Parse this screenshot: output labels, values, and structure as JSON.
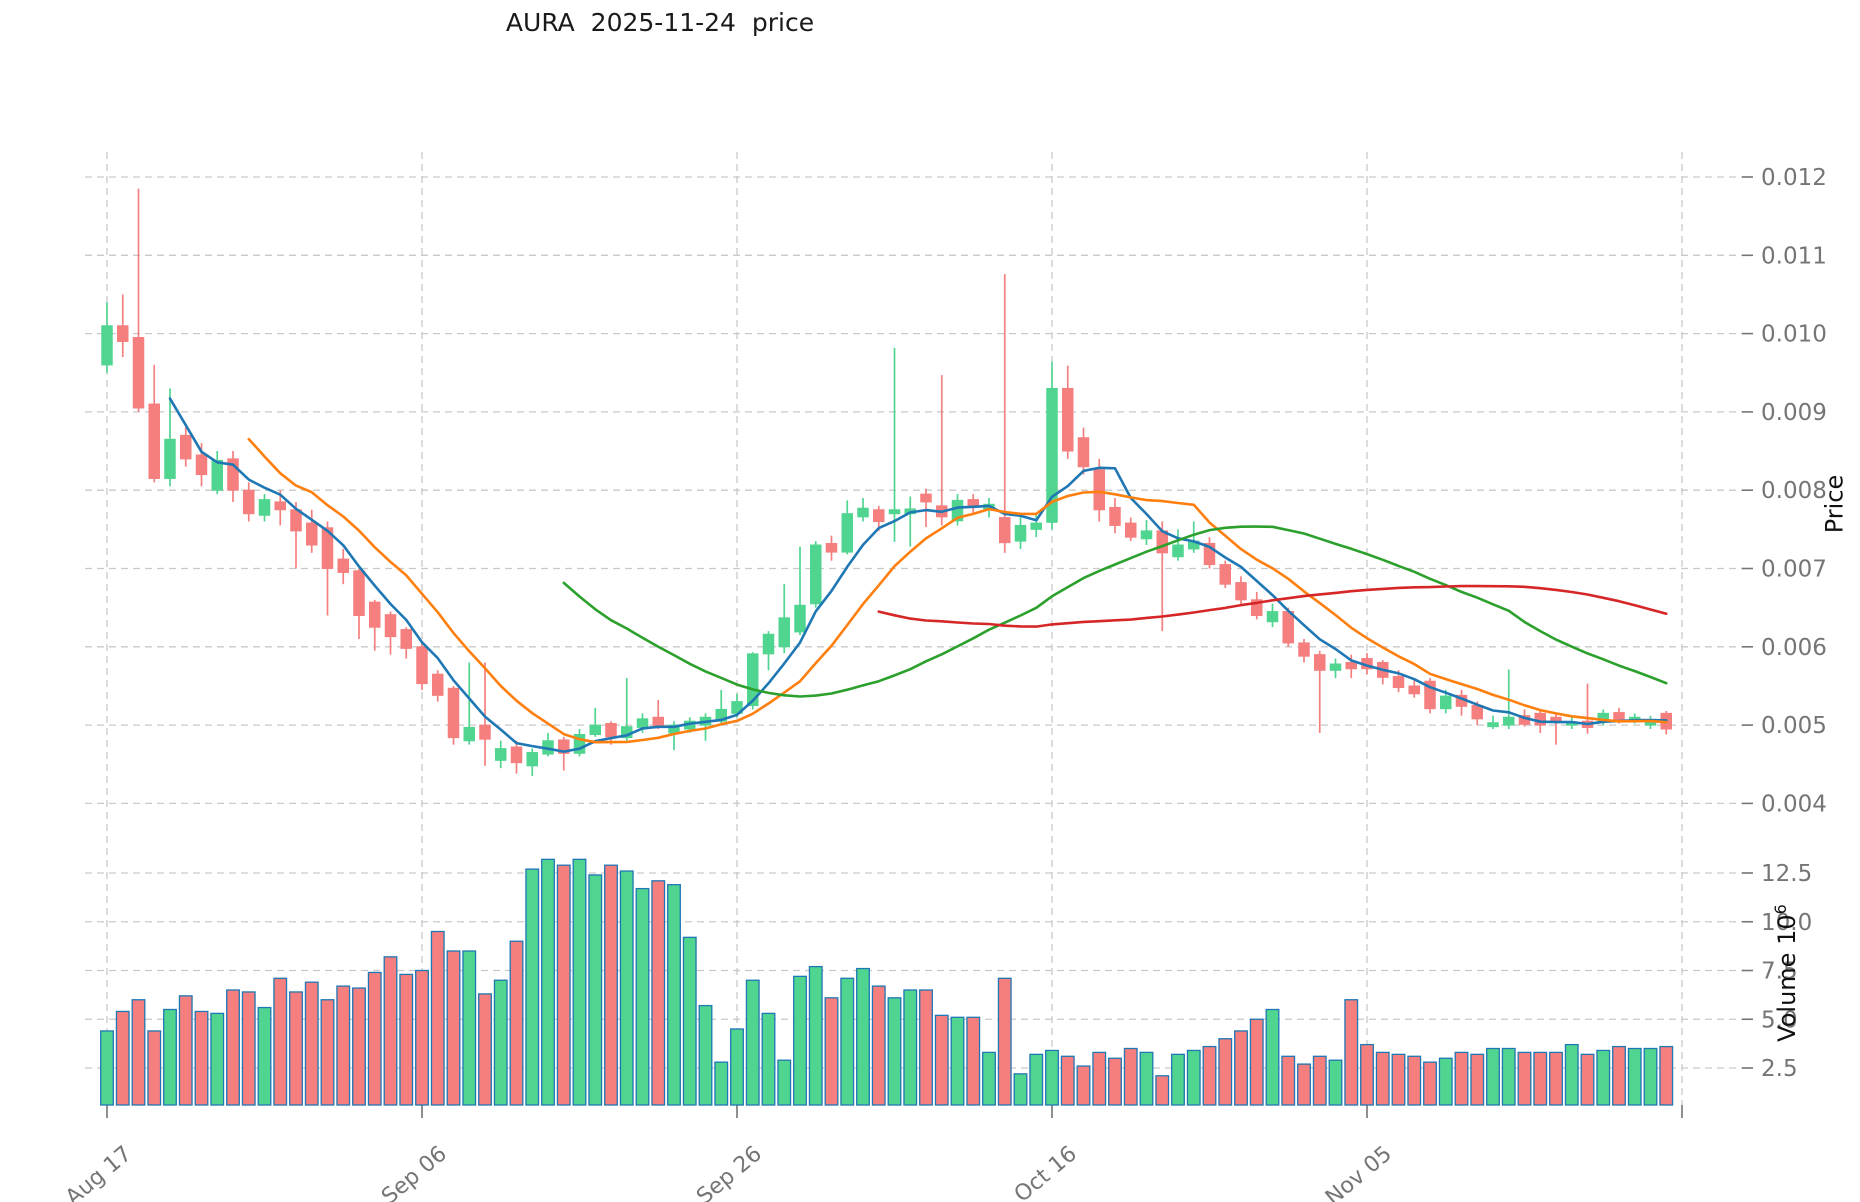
{
  "title": "AURA  2025-11-24  price",
  "axes": {
    "price_label": "Price",
    "volume_label": "Volume 10",
    "volume_label_exp": "6",
    "price_ticks": [
      0.004,
      0.005,
      0.006,
      0.007,
      0.008,
      0.009,
      0.01,
      0.011,
      0.012
    ],
    "volume_ticks": [
      2.5,
      5.0,
      7.5,
      10.0,
      12.5
    ],
    "x_ticks": [
      {
        "index": 0,
        "label": "Aug 17"
      },
      {
        "index": 20,
        "label": "Sep 06"
      },
      {
        "index": 40,
        "label": "Sep 26"
      },
      {
        "index": 60,
        "label": "Oct 16"
      },
      {
        "index": 80,
        "label": "Nov 05"
      },
      {
        "index": 100,
        "label": ""
      }
    ]
  },
  "colors": {
    "up": "#50d591",
    "down": "#f57e7e",
    "volume_edge": "#1f77b4",
    "grid": "#c9c9c9",
    "tick_text": "#757575",
    "title_text": "#1a1a1a",
    "background": "#ffffff"
  },
  "chart_data": {
    "type": "candlestick+volume",
    "title": "AURA  2025-11-24  price",
    "ylabel": "Price",
    "ylabel_lower": "Volume 10^6",
    "price_ylim": [
      0.004,
      0.012
    ],
    "volume_unit": 1000000,
    "legend_position": "none",
    "grid": "dashed",
    "dates": [
      "2025-08-17",
      "2025-08-18",
      "2025-08-19",
      "2025-08-20",
      "2025-08-21",
      "2025-08-22",
      "2025-08-23",
      "2025-08-24",
      "2025-08-25",
      "2025-08-26",
      "2025-08-27",
      "2025-08-28",
      "2025-08-29",
      "2025-08-30",
      "2025-08-31",
      "2025-09-01",
      "2025-09-02",
      "2025-09-03",
      "2025-09-04",
      "2025-09-05",
      "2025-09-06",
      "2025-09-07",
      "2025-09-08",
      "2025-09-09",
      "2025-09-10",
      "2025-09-11",
      "2025-09-12",
      "2025-09-13",
      "2025-09-14",
      "2025-09-15",
      "2025-09-16",
      "2025-09-17",
      "2025-09-18",
      "2025-09-19",
      "2025-09-20",
      "2025-09-21",
      "2025-09-22",
      "2025-09-23",
      "2025-09-24",
      "2025-09-25",
      "2025-09-26",
      "2025-09-27",
      "2025-09-28",
      "2025-09-29",
      "2025-09-30",
      "2025-10-01",
      "2025-10-02",
      "2025-10-03",
      "2025-10-04",
      "2025-10-05",
      "2025-10-06",
      "2025-10-07",
      "2025-10-08",
      "2025-10-09",
      "2025-10-10",
      "2025-10-11",
      "2025-10-12",
      "2025-10-13",
      "2025-10-14",
      "2025-10-15",
      "2025-10-16",
      "2025-10-17",
      "2025-10-18",
      "2025-10-19",
      "2025-10-20",
      "2025-10-21",
      "2025-10-22",
      "2025-10-23",
      "2025-10-24",
      "2025-10-25",
      "2025-10-26",
      "2025-10-27",
      "2025-10-28",
      "2025-10-29",
      "2025-10-30",
      "2025-10-31",
      "2025-11-01",
      "2025-11-02",
      "2025-11-03",
      "2025-11-04",
      "2025-11-05",
      "2025-11-06",
      "2025-11-07",
      "2025-11-08",
      "2025-11-09",
      "2025-11-10",
      "2025-11-11",
      "2025-11-12",
      "2025-11-13",
      "2025-11-14",
      "2025-11-15",
      "2025-11-16",
      "2025-11-17",
      "2025-11-18",
      "2025-11-19",
      "2025-11-20",
      "2025-11-21",
      "2025-11-22",
      "2025-11-23",
      "2025-11-24"
    ],
    "open": [
      0.0096,
      0.0101,
      0.00995,
      0.0091,
      0.00815,
      0.0087,
      0.00845,
      0.008,
      0.0084,
      0.008,
      0.00768,
      0.00785,
      0.00775,
      0.00758,
      0.00752,
      0.00712,
      0.00697,
      0.00657,
      0.00641,
      0.00622,
      0.006,
      0.00565,
      0.00547,
      0.0048,
      0.005,
      0.00455,
      0.00472,
      0.00448,
      0.00463,
      0.00481,
      0.00464,
      0.00488,
      0.00502,
      0.00484,
      0.00497,
      0.0051,
      0.0049,
      0.00495,
      0.005,
      0.00505,
      0.00515,
      0.00525,
      0.00591,
      0.006,
      0.00619,
      0.00655,
      0.00732,
      0.00721,
      0.00766,
      0.00775,
      0.0077,
      0.0077,
      0.00795,
      0.0078,
      0.00761,
      0.00788,
      0.00775,
      0.00765,
      0.00735,
      0.0075,
      0.00759,
      0.0093,
      0.00867,
      0.00826,
      0.00778,
      0.00758,
      0.00738,
      0.00748,
      0.00715,
      0.00725,
      0.00732,
      0.00705,
      0.00682,
      0.0066,
      0.00632,
      0.00645,
      0.00605,
      0.0059,
      0.0057,
      0.0058,
      0.00585,
      0.0058,
      0.00562,
      0.0055,
      0.00556,
      0.00521,
      0.00538,
      0.00525,
      0.00498,
      0.005,
      0.00512,
      0.00515,
      0.0051,
      0.005,
      0.00505,
      0.00505,
      0.00516,
      0.00505,
      0.005,
      0.00515
    ],
    "high": [
      0.0104,
      0.0105,
      0.01185,
      0.0096,
      0.0093,
      0.0088,
      0.0086,
      0.0085,
      0.0085,
      0.0081,
      0.00795,
      0.008,
      0.00785,
      0.00775,
      0.0076,
      0.00725,
      0.007,
      0.0066,
      0.00645,
      0.00625,
      0.00605,
      0.0057,
      0.0055,
      0.0058,
      0.0058,
      0.0048,
      0.0048,
      0.0047,
      0.0049,
      0.00485,
      0.00495,
      0.00522,
      0.00505,
      0.0056,
      0.00515,
      0.00532,
      0.00505,
      0.0051,
      0.00515,
      0.00545,
      0.0054,
      0.00593,
      0.0062,
      0.0068,
      0.00728,
      0.00735,
      0.00742,
      0.00787,
      0.0079,
      0.0078,
      0.00982,
      0.00792,
      0.00802,
      0.00947,
      0.00795,
      0.00795,
      0.0079,
      0.01076,
      0.0077,
      0.0077,
      0.00964,
      0.00959,
      0.0088,
      0.0084,
      0.0079,
      0.00765,
      0.00762,
      0.0076,
      0.0075,
      0.0076,
      0.0074,
      0.0071,
      0.0069,
      0.0067,
      0.00655,
      0.0065,
      0.0061,
      0.00595,
      0.00585,
      0.0059,
      0.00592,
      0.00583,
      0.0057,
      0.00558,
      0.0056,
      0.00545,
      0.00545,
      0.0053,
      0.00512,
      0.00571,
      0.0052,
      0.00518,
      0.00515,
      0.00512,
      0.00553,
      0.0052,
      0.00522,
      0.00515,
      0.00512,
      0.00518
    ],
    "low": [
      0.0095,
      0.0097,
      0.009,
      0.0081,
      0.00805,
      0.0083,
      0.00805,
      0.00795,
      0.00785,
      0.0076,
      0.0076,
      0.00755,
      0.007,
      0.0072,
      0.0064,
      0.0068,
      0.0061,
      0.00595,
      0.0059,
      0.00585,
      0.00545,
      0.0053,
      0.00475,
      0.00475,
      0.00448,
      0.00445,
      0.00438,
      0.00435,
      0.0046,
      0.00442,
      0.0046,
      0.00485,
      0.00475,
      0.0048,
      0.0049,
      0.00495,
      0.00468,
      0.0049,
      0.0048,
      0.005,
      0.0051,
      0.0052,
      0.0057,
      0.00592,
      0.00615,
      0.0065,
      0.0071,
      0.00718,
      0.0076,
      0.00748,
      0.00734,
      0.00728,
      0.00753,
      0.00755,
      0.00755,
      0.0077,
      0.00765,
      0.0072,
      0.00725,
      0.0074,
      0.0075,
      0.0084,
      0.0082,
      0.0076,
      0.00745,
      0.00735,
      0.0073,
      0.0062,
      0.0071,
      0.0072,
      0.007,
      0.00675,
      0.00655,
      0.00635,
      0.00625,
      0.006,
      0.0058,
      0.0049,
      0.0056,
      0.0056,
      0.00565,
      0.00552,
      0.00542,
      0.00535,
      0.00515,
      0.00515,
      0.00512,
      0.005,
      0.00495,
      0.00495,
      0.00498,
      0.0049,
      0.00475,
      0.00495,
      0.00489,
      0.005,
      0.00502,
      0.00502,
      0.00495,
      0.00488
    ],
    "close": [
      0.0101,
      0.0099,
      0.00905,
      0.00815,
      0.00865,
      0.0084,
      0.0082,
      0.00838,
      0.008,
      0.0077,
      0.00788,
      0.00775,
      0.00748,
      0.0073,
      0.007,
      0.00695,
      0.0064,
      0.00625,
      0.00613,
      0.00598,
      0.00553,
      0.00538,
      0.00484,
      0.00497,
      0.00482,
      0.0047,
      0.00452,
      0.00465,
      0.0048,
      0.00464,
      0.00488,
      0.005,
      0.00485,
      0.00498,
      0.00508,
      0.00498,
      0.005,
      0.00505,
      0.0051,
      0.0052,
      0.0053,
      0.00591,
      0.00616,
      0.00637,
      0.00653,
      0.0073,
      0.00721,
      0.0077,
      0.00777,
      0.0076,
      0.00775,
      0.00776,
      0.00785,
      0.00766,
      0.00787,
      0.0078,
      0.00782,
      0.00733,
      0.00755,
      0.00758,
      0.0093,
      0.0085,
      0.0083,
      0.00775,
      0.00755,
      0.0074,
      0.00748,
      0.0072,
      0.0073,
      0.00735,
      0.00705,
      0.0068,
      0.0066,
      0.0064,
      0.00645,
      0.00605,
      0.00588,
      0.0057,
      0.00578,
      0.00572,
      0.00572,
      0.00561,
      0.00548,
      0.0054,
      0.00521,
      0.00537,
      0.00524,
      0.00508,
      0.00503,
      0.0051,
      0.00501,
      0.005,
      0.00505,
      0.00504,
      0.00497,
      0.00515,
      0.00505,
      0.0051,
      0.00505,
      0.00495
    ],
    "volume": [
      4.4,
      5.4,
      6.0,
      4.4,
      5.5,
      6.2,
      5.4,
      5.3,
      6.5,
      6.4,
      5.6,
      7.1,
      6.4,
      6.9,
      6.0,
      6.7,
      6.6,
      7.4,
      8.2,
      7.3,
      7.5,
      9.5,
      8.5,
      8.5,
      6.3,
      7.0,
      9.0,
      12.7,
      13.2,
      12.9,
      13.2,
      12.4,
      12.9,
      12.6,
      11.7,
      12.1,
      11.9,
      9.2,
      5.7,
      2.8,
      4.5,
      7.0,
      5.3,
      2.9,
      7.2,
      7.7,
      6.1,
      7.1,
      7.6,
      6.7,
      6.1,
      6.5,
      6.5,
      5.2,
      5.1,
      5.1,
      3.3,
      7.1,
      2.2,
      3.2,
      3.4,
      3.1,
      2.6,
      3.3,
      3.0,
      3.5,
      3.3,
      2.1,
      3.2,
      3.4,
      3.6,
      4.0,
      4.4,
      5.0,
      5.5,
      3.1,
      2.7,
      3.1,
      2.9,
      6.0,
      3.7,
      3.3,
      3.2,
      3.1,
      2.8,
      3.0,
      3.3,
      3.2,
      3.5,
      3.5,
      3.3,
      3.3,
      3.3,
      3.7,
      3.2,
      3.4,
      3.6,
      3.5,
      3.5,
      3.6
    ],
    "moving_averages": [
      {
        "window": 5,
        "color": "#1f77b4"
      },
      {
        "window": 10,
        "color": "#ff7f0e"
      },
      {
        "window": 30,
        "color": "#2ca02c"
      },
      {
        "window": 50,
        "color": "#d62728"
      }
    ]
  }
}
